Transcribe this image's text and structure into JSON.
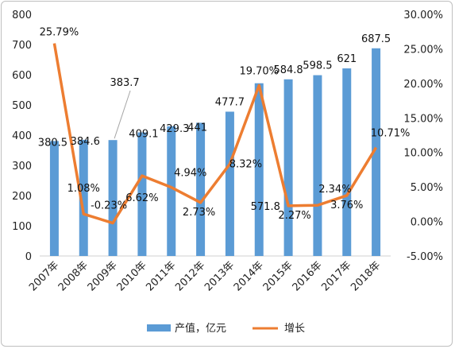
{
  "chart_data": {
    "type": "bar",
    "categories": [
      "2007年",
      "2008年",
      "2009年",
      "2010年",
      "2011年",
      "2012年",
      "2013年",
      "2014年",
      "2015年",
      "2016年",
      "2017年",
      "2018年"
    ],
    "series": [
      {
        "name": "产值，亿元",
        "type": "bar",
        "axis": "left",
        "color": "#5b9bd5",
        "values": [
          380.5,
          384.6,
          383.7,
          409.1,
          429.3,
          441,
          477.7,
          571.8,
          584.8,
          598.5,
          621,
          687.5
        ],
        "labels": [
          "380.5",
          "384.6",
          "383.7",
          "409.1",
          "429.3",
          "441",
          "477.7",
          "571.8",
          "584.8",
          "598.5",
          "621",
          "687.5"
        ]
      },
      {
        "name": "增长",
        "type": "line",
        "axis": "right",
        "color": "#ed7d31",
        "values": [
          25.79,
          1.08,
          -0.23,
          6.62,
          4.94,
          2.73,
          8.32,
          19.7,
          2.27,
          2.34,
          3.76,
          10.71
        ],
        "labels": [
          "25.79%",
          "1.08%",
          "-0.23%",
          "6.62%",
          "4.94%",
          "2.73%",
          "8.32%",
          "19.70%",
          "2.27%",
          "2.34%",
          "3.76%",
          "10.71%"
        ]
      }
    ],
    "y_left": {
      "min": 0,
      "max": 800,
      "ticks": [
        "0",
        "100",
        "200",
        "300",
        "400",
        "500",
        "600",
        "700",
        "800"
      ]
    },
    "y_right": {
      "min": -5,
      "max": 30,
      "ticks": [
        "-5.00%",
        "0.00%",
        "5.00%",
        "10.00%",
        "15.00%",
        "20.00%",
        "25.00%",
        "30.00%"
      ]
    },
    "grid": false,
    "legend_position": "bottom"
  }
}
